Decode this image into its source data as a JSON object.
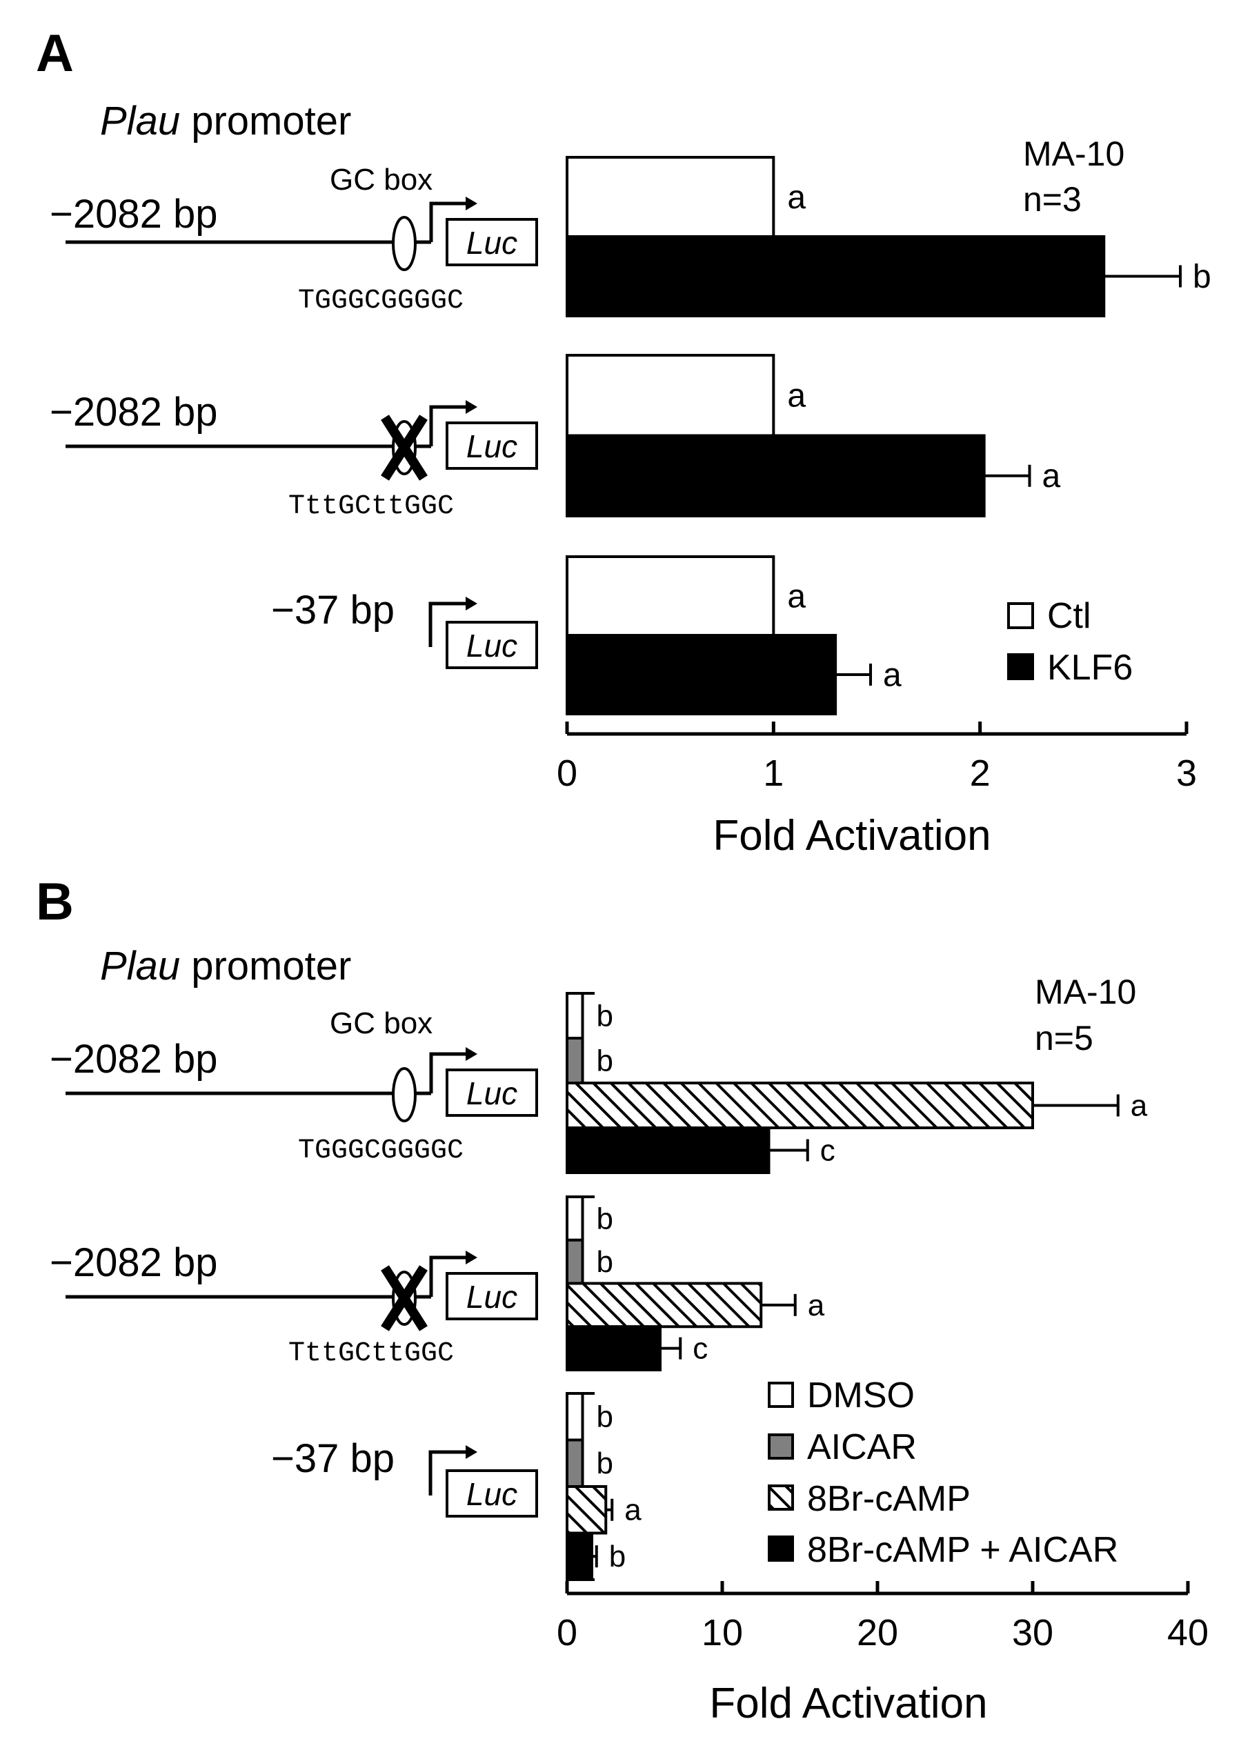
{
  "chart_data": [
    {
      "type": "bar",
      "orientation": "horizontal",
      "panel_label": "A",
      "promoter_title_italic": "Plau",
      "promoter_title_rest": " promoter",
      "gc_box_label": "GC box",
      "cell_line": "MA-10",
      "n_label": "n=3",
      "categories": [
        "−2082 bp",
        "−2082 bp",
        "−37 bp"
      ],
      "sequences": [
        "TGGGCGGGGC",
        "TttGCttGGC",
        ""
      ],
      "construct_mutated": [
        false,
        true,
        false
      ],
      "construct_gc_box": [
        true,
        true,
        false
      ],
      "luc_label": "Luc",
      "series": [
        {
          "name": "Ctl",
          "values": [
            1,
            1,
            1
          ],
          "errors": [
            0,
            0,
            0
          ],
          "letters": [
            "a",
            "a",
            "a"
          ],
          "fill": "white"
        },
        {
          "name": "KLF6",
          "values": [
            2.6,
            2.02,
            1.3
          ],
          "errors": [
            0.37,
            0.22,
            0.17
          ],
          "letters": [
            "b",
            "a",
            "a"
          ],
          "fill": "black"
        }
      ],
      "xlim": [
        0,
        3
      ],
      "xticks": [
        "0",
        "1",
        "2",
        "3"
      ],
      "xlabel": "Fold Activation",
      "legend_position": "bottom-right",
      "grid": false
    },
    {
      "type": "bar",
      "orientation": "horizontal",
      "panel_label": "B",
      "promoter_title_italic": "Plau",
      "promoter_title_rest": " promoter",
      "gc_box_label": "GC box",
      "cell_line": "MA-10",
      "n_label": "n=5",
      "categories": [
        "−2082 bp",
        "−2082 bp",
        "−37 bp"
      ],
      "sequences": [
        "TGGGCGGGGC",
        "TttGCttGGC",
        ""
      ],
      "construct_mutated": [
        false,
        true,
        false
      ],
      "construct_gc_box": [
        true,
        true,
        false
      ],
      "luc_label": "Luc",
      "series": [
        {
          "name": "DMSO",
          "values": [
            1,
            1,
            1
          ],
          "errors": [
            0,
            0,
            0
          ],
          "letters": [
            "b",
            "b",
            "b"
          ],
          "fill": "white"
        },
        {
          "name": "AICAR",
          "values": [
            1,
            1,
            1
          ],
          "errors": [
            0,
            0,
            0
          ],
          "letters": [
            "b",
            "b",
            "b"
          ],
          "fill": "gray"
        },
        {
          "name": "8Br-cAMP",
          "values": [
            30,
            12.5,
            2.5
          ],
          "errors": [
            5.5,
            2.2,
            0.4
          ],
          "letters": [
            "a",
            "a",
            "a"
          ],
          "fill": "hatch"
        },
        {
          "name": "8Br-cAMP + AICAR",
          "values": [
            13,
            6,
            1.6
          ],
          "errors": [
            2.5,
            1.3,
            0.3
          ],
          "letters": [
            "c",
            "c",
            "b"
          ],
          "fill": "black"
        }
      ],
      "xlim": [
        0,
        40
      ],
      "xticks": [
        "0",
        "10",
        "20",
        "30",
        "40"
      ],
      "xlabel": "Fold Activation",
      "legend_position": "bottom-right",
      "grid": false
    }
  ]
}
